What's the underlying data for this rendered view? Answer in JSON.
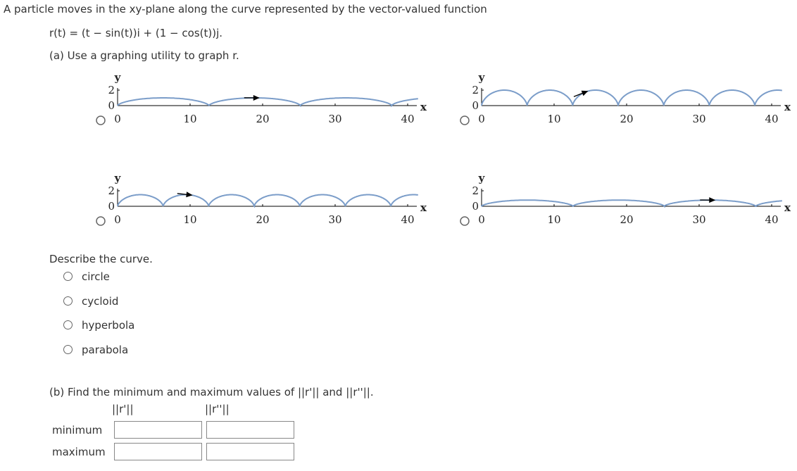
{
  "intro": "A particle moves in the xy-plane along the curve represented by the vector-valued function",
  "function": "r(t) = (t − sin(t))i + (1 − cos(t))j.",
  "part_a": "(a) Use a graphing utility to graph r.",
  "graphs": [
    {
      "x_label": "x",
      "y_label": "y",
      "xticks": [
        0,
        10,
        20,
        30,
        40
      ],
      "yticks": [
        0,
        2
      ]
    },
    {
      "x_label": "x",
      "y_label": "y",
      "xticks": [
        0,
        10,
        20,
        30,
        40
      ],
      "yticks": [
        0,
        2
      ]
    },
    {
      "x_label": "x",
      "y_label": "y",
      "xticks": [
        0,
        10,
        20,
        30,
        40
      ],
      "yticks": [
        0,
        2
      ]
    },
    {
      "x_label": "x",
      "y_label": "y",
      "xticks": [
        0,
        10,
        20,
        30,
        40
      ],
      "yticks": [
        0,
        2
      ]
    }
  ],
  "describe": {
    "prompt": "Describe the curve.",
    "options": [
      "circle",
      "cycloid",
      "hyperbola",
      "parabola"
    ]
  },
  "part_b": {
    "prompt": "(b) Find the minimum and maximum values of ||r'|| and ||r''||.",
    "columns": [
      "||r'||",
      "||r''||"
    ],
    "rows": [
      "minimum",
      "maximum"
    ]
  }
}
